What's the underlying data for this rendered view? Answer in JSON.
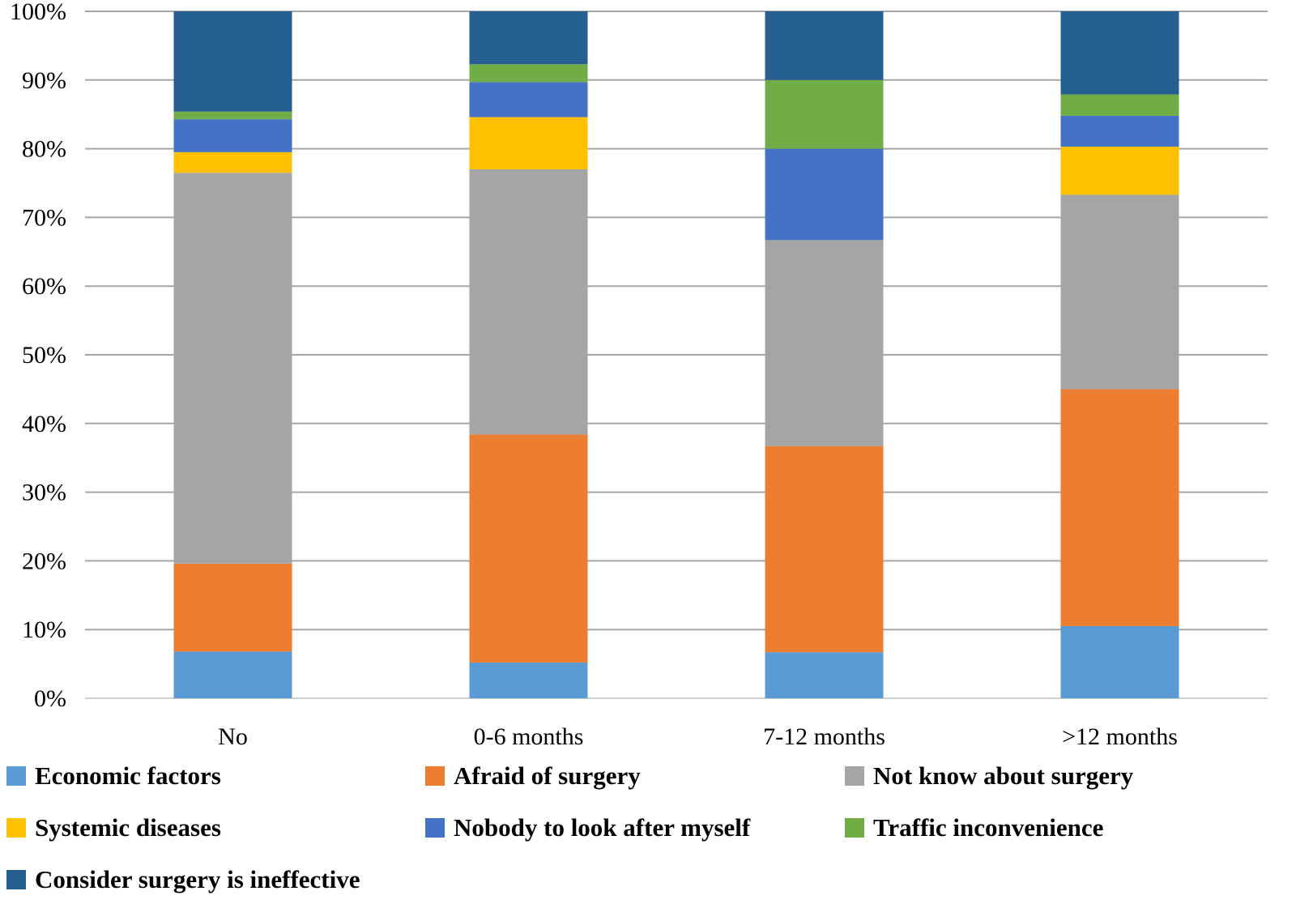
{
  "chart_data": {
    "type": "bar",
    "stacked": true,
    "percent": true,
    "title": "",
    "xlabel": "",
    "ylabel": "",
    "ylim": [
      0,
      100
    ],
    "yticks": [
      "0%",
      "10%",
      "20%",
      "30%",
      "40%",
      "50%",
      "60%",
      "70%",
      "80%",
      "90%",
      "100%"
    ],
    "grid": true,
    "legend_position": "bottom",
    "categories": [
      "No",
      "0-6 months",
      "7-12 months",
      ">12 months"
    ],
    "series": [
      {
        "name": "Economic factors",
        "color": "#5B9BD5",
        "values": [
          6.8,
          5.2,
          6.7,
          10.5
        ]
      },
      {
        "name": "Afraid of surgery",
        "color": "#ED7D31",
        "values": [
          12.8,
          33.2,
          30.0,
          34.5
        ]
      },
      {
        "name": "Not know about surgery",
        "color": "#A5A5A5",
        "values": [
          56.9,
          38.6,
          30.0,
          28.3
        ]
      },
      {
        "name": "Systemic diseases",
        "color": "#FFC000",
        "values": [
          3.0,
          7.6,
          0.0,
          7.0
        ]
      },
      {
        "name": "Nobody to look after myself",
        "color": "#4472C4",
        "values": [
          4.8,
          5.1,
          13.3,
          4.5
        ]
      },
      {
        "name": "Traffic inconvenience",
        "color": "#70AD47",
        "values": [
          1.1,
          2.6,
          10.0,
          3.1
        ]
      },
      {
        "name": "Consider surgery is ineffective",
        "color": "#255E91",
        "values": [
          14.6,
          7.7,
          10.0,
          12.1
        ]
      }
    ]
  }
}
